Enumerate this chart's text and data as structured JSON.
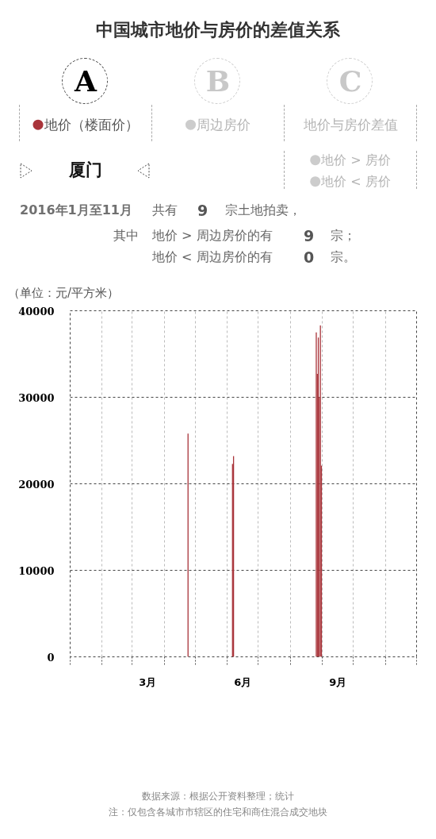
{
  "chart_data": {
    "type": "bar",
    "title": "中国城市地价与房价的差值关系",
    "subtitle": "厦门",
    "ylabel": "（单位：元/平方米）",
    "x": [
      "2016-04-24",
      "2016-06-06",
      "2016-06-07",
      "2016-08-26",
      "2016-08-27",
      "2016-08-28",
      "2016-08-29",
      "2016-08-30",
      "2016-08-31"
    ],
    "series": [
      {
        "name": "地价（楼面价）",
        "color": "#a9343a",
        "values": [
          25800,
          22300,
          23200,
          37500,
          32700,
          36900,
          30000,
          38300,
          22100
        ]
      }
    ],
    "xlim": [
      "2016-01-01",
      "2016-12-01"
    ],
    "xticks": [
      {
        "value": "2016-01-01",
        "label": null
      },
      {
        "value": "2016-02-01",
        "label": null
      },
      {
        "value": "2016-03-01",
        "label": null
      },
      {
        "value": "2016-03-16",
        "label": "3月"
      },
      {
        "value": "2016-04-01",
        "label": null
      },
      {
        "value": "2016-05-01",
        "label": null
      },
      {
        "value": "2016-06-01",
        "label": null
      },
      {
        "value": "2016-06-16",
        "label": "6月"
      },
      {
        "value": "2016-07-01",
        "label": null
      },
      {
        "value": "2016-08-01",
        "label": null
      },
      {
        "value": "2016-09-01",
        "label": null
      },
      {
        "value": "2016-09-16",
        "label": "9月"
      },
      {
        "value": "2016-10-01",
        "label": null
      },
      {
        "value": "2016-11-01",
        "label": null
      },
      {
        "value": "2016-12-01",
        "label": null
      }
    ],
    "ylim": [
      0,
      40000
    ],
    "yticks": [
      0,
      10000,
      20000,
      30000,
      40000
    ],
    "grid": true,
    "legend": "top",
    "annotations": [
      "A",
      "B",
      "C",
      "周边房价",
      "地价与房价差值",
      "地价 > 房价",
      "地价 < 房价",
      "2016年1月至11月",
      "共有",
      "9",
      "宗土地拍卖，",
      "其中",
      "地价 > 周边房价的有",
      "9",
      "宗；",
      "地价 < 周边房价的有",
      "0",
      "宗。",
      "数据来源：根据公开资料整理；统计",
      "注：仅包含各城市市辖区的住宅和商住混合成交地块"
    ]
  }
}
